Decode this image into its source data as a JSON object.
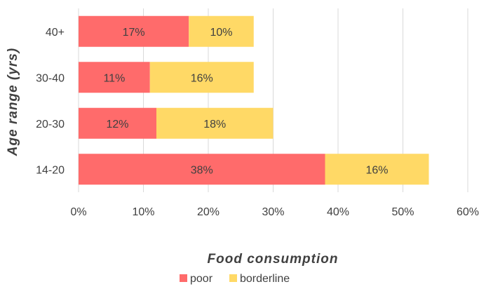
{
  "chart_data": {
    "type": "bar",
    "orientation": "horizontal",
    "stacked": true,
    "categories": [
      "40+",
      "30-40",
      "20-30",
      "14-20"
    ],
    "series": [
      {
        "name": "poor",
        "values": [
          17,
          11,
          12,
          38
        ],
        "labels": [
          "17%",
          "11%",
          "12%",
          "38%"
        ],
        "color": "#ff6b6b"
      },
      {
        "name": "borderline",
        "values": [
          10,
          16,
          18,
          16
        ],
        "labels": [
          "10%",
          "16%",
          "18%",
          "16%"
        ],
        "color": "#ffd966"
      }
    ],
    "xlabel": "Food consumption",
    "ylabel": "Age range (yrs)",
    "xlim": [
      0,
      60
    ],
    "xticks": [
      0,
      10,
      20,
      30,
      40,
      50,
      60
    ],
    "xtick_labels": [
      "0%",
      "10%",
      "20%",
      "30%",
      "40%",
      "50%",
      "60%"
    ],
    "grid": true,
    "legend_position": "bottom",
    "gridline_color": "#d9d9d9"
  }
}
